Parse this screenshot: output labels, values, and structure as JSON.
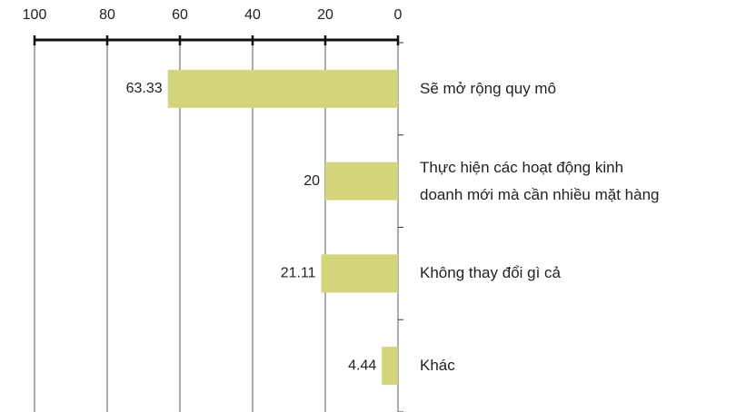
{
  "chart_data": {
    "type": "barh",
    "categories": [
      "Sẽ mở rộng quy mô",
      "Thực hiện các hoạt động kinh\ndoanh mới mà cần nhiều mặt hàng",
      "Không thay đổi gì cả",
      "Khác"
    ],
    "values": [
      63.33,
      20,
      21.11,
      4.44
    ],
    "color": "#d3d47c",
    "xlim": [
      100,
      0
    ],
    "xticks": [
      100,
      80,
      60,
      40,
      20,
      0
    ],
    "grid": true
  }
}
